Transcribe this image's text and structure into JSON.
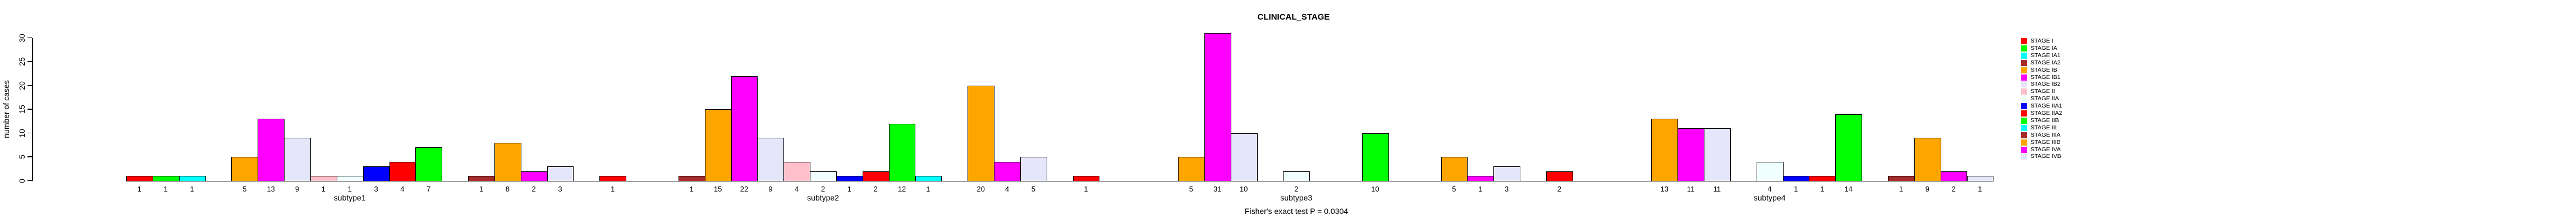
{
  "chart_data": {
    "type": "bar",
    "title": "CLINICAL_STAGE",
    "ylabel": "number of cases",
    "xlabel": "",
    "caption": "Fisher's exact test P = 0.0304",
    "ylim": [
      0,
      30
    ],
    "yticks": [
      0,
      5,
      10,
      15,
      20,
      25,
      30
    ],
    "grid": false,
    "legend_position": "right",
    "categories": [
      "subtype1",
      "subtype2",
      "subtype3",
      "subtype4"
    ],
    "series": [
      {
        "name": "STAGE I",
        "color": "#FF0000",
        "values": [
          1,
          1,
          1,
          2
        ]
      },
      {
        "name": "STAGE IA",
        "color": "#00FF00",
        "values": [
          1,
          0,
          0,
          0
        ]
      },
      {
        "name": "STAGE IA1",
        "color": "#00FFFF",
        "values": [
          1,
          0,
          0,
          0
        ]
      },
      {
        "name": "STAGE IA2",
        "color": "#A52A2A",
        "values": [
          0,
          1,
          0,
          0
        ]
      },
      {
        "name": "STAGE IB",
        "color": "#FFA500",
        "values": [
          5,
          15,
          5,
          13
        ]
      },
      {
        "name": "STAGE IB1",
        "color": "#FF00FF",
        "values": [
          13,
          22,
          31,
          11
        ]
      },
      {
        "name": "STAGE IB2",
        "color": "#E6E6FA",
        "values": [
          9,
          9,
          10,
          11
        ]
      },
      {
        "name": "STAGE II",
        "color": "#FFC0CB",
        "values": [
          1,
          4,
          0,
          0
        ]
      },
      {
        "name": "STAGE IIA",
        "color": "#F0FFFF",
        "values": [
          1,
          2,
          2,
          4
        ]
      },
      {
        "name": "STAGE IIA1",
        "color": "#0000FF",
        "values": [
          3,
          1,
          0,
          1
        ]
      },
      {
        "name": "STAGE IIA2",
        "color": "#FF0000",
        "values": [
          4,
          2,
          0,
          1
        ]
      },
      {
        "name": "STAGE IIB",
        "color": "#00FF00",
        "values": [
          7,
          12,
          10,
          14
        ]
      },
      {
        "name": "STAGE III",
        "color": "#00FFFF",
        "values": [
          0,
          1,
          0,
          0
        ]
      },
      {
        "name": "STAGE IIIA",
        "color": "#A52A2A",
        "values": [
          1,
          0,
          0,
          1
        ]
      },
      {
        "name": "STAGE IIIB",
        "color": "#FFA500",
        "values": [
          8,
          20,
          5,
          9
        ]
      },
      {
        "name": "STAGE IVA",
        "color": "#FF00FF",
        "values": [
          2,
          4,
          1,
          2
        ]
      },
      {
        "name": "STAGE IVB",
        "color": "#E6E6FA",
        "values": [
          3,
          5,
          3,
          1
        ]
      }
    ]
  }
}
